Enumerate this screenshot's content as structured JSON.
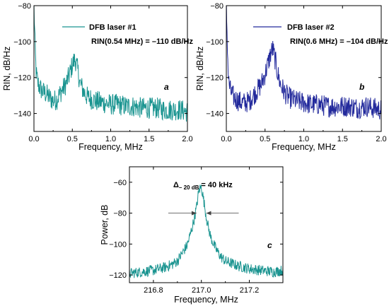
{
  "colors": {
    "teal": "#1a9490",
    "navy": "#232a9c",
    "axis": "#000000",
    "arrow": "#444444"
  },
  "chart_data": [
    {
      "panel": "a",
      "type": "line",
      "xlabel": "Frequency, MHz",
      "ylabel": "RIN, dB/Hz",
      "xlim": [
        0.0,
        2.0
      ],
      "ylim": [
        -150,
        -80
      ],
      "xticks": [
        0.0,
        0.5,
        1.0,
        1.5,
        2.0
      ],
      "xtick_labels": [
        "0.0",
        "0.5",
        "1.0",
        "1.5",
        "2.0"
      ],
      "yticks": [
        -80,
        -100,
        -120,
        -140
      ],
      "ytick_labels": [
        "-80",
        "-100",
        "-120",
        "-140"
      ],
      "legend": "top-right",
      "annotation": "RIN(0.54 MHz) = –110 dB/Hz",
      "panel_label": "a",
      "color": "#1a9490",
      "series": [
        {
          "name": "DFB laser #1",
          "x": [
            0.0,
            0.01,
            0.02,
            0.03,
            0.05,
            0.08,
            0.12,
            0.16,
            0.2,
            0.25,
            0.3,
            0.35,
            0.4,
            0.45,
            0.48,
            0.5,
            0.52,
            0.54,
            0.56,
            0.58,
            0.6,
            0.65,
            0.7,
            0.8,
            0.9,
            1.0,
            1.1,
            1.2,
            1.3,
            1.4,
            1.5,
            1.6,
            1.7,
            1.8,
            1.9,
            2.0
          ],
          "y": [
            -80,
            -95,
            -110,
            -118,
            -123,
            -126,
            -128,
            -129,
            -131,
            -133,
            -132,
            -128,
            -125,
            -120,
            -116,
            -113,
            -111,
            -110,
            -114,
            -118,
            -123,
            -128,
            -131,
            -133,
            -134,
            -135,
            -135,
            -136,
            -136,
            -137,
            -137,
            -137,
            -138,
            -138,
            -138,
            -139
          ],
          "noise_amplitude": 6
        }
      ]
    },
    {
      "panel": "b",
      "type": "line",
      "xlabel": "Frequency, MHz",
      "ylabel": "RIN, dB/Hz",
      "xlim": [
        0.0,
        2.0
      ],
      "ylim": [
        -150,
        -80
      ],
      "xticks": [
        0.0,
        0.5,
        1.0,
        1.5,
        2.0
      ],
      "xtick_labels": [
        "0.0",
        "0.5",
        "1.0",
        "1.5",
        "2.0"
      ],
      "yticks": [
        -80,
        -100,
        -120,
        -140
      ],
      "ytick_labels": [
        "-80",
        "-100",
        "-120",
        "-140"
      ],
      "legend": "top-right",
      "annotation": "RIN(0.6 MHz) = –104 dB/Hz",
      "panel_label": "b",
      "color": "#232a9c",
      "series": [
        {
          "name": "DFB laser #2",
          "x": [
            0.0,
            0.01,
            0.02,
            0.03,
            0.05,
            0.08,
            0.12,
            0.16,
            0.2,
            0.25,
            0.3,
            0.35,
            0.4,
            0.45,
            0.5,
            0.54,
            0.57,
            0.6,
            0.63,
            0.66,
            0.7,
            0.75,
            0.8,
            0.9,
            1.0,
            1.1,
            1.2,
            1.3,
            1.4,
            1.5,
            1.6,
            1.7,
            1.8,
            1.9,
            2.0
          ],
          "y": [
            -80,
            -95,
            -112,
            -122,
            -127,
            -130,
            -132,
            -133,
            -134,
            -134,
            -133,
            -130,
            -127,
            -124,
            -118,
            -112,
            -107,
            -104,
            -110,
            -117,
            -124,
            -128,
            -131,
            -133,
            -134,
            -135,
            -135,
            -136,
            -136,
            -136,
            -136,
            -137,
            -136,
            -137,
            -138
          ],
          "noise_amplitude": 6
        }
      ]
    },
    {
      "panel": "c",
      "type": "line",
      "xlabel": "Frequency, MHz",
      "ylabel": "Power, dB",
      "xlim": [
        216.7,
        217.34
      ],
      "ylim": [
        -125,
        -50
      ],
      "xticks": [
        216.8,
        217.0,
        217.2
      ],
      "xtick_labels": [
        "216.8",
        "217.0",
        "217.2"
      ],
      "yticks": [
        -60,
        -80,
        -100,
        -120
      ],
      "ytick_labels": [
        "-60",
        "-80",
        "-100",
        "-120"
      ],
      "annotation_prefix": "Δ",
      "annotation_sub": "– 20 dB",
      "annotation_suffix": " = 40 kHz",
      "linewidth_marker": {
        "x_left": 216.98,
        "x_right": 217.02,
        "y": -80
      },
      "panel_label": "c",
      "color": "#1a9490",
      "series": [
        {
          "name": "",
          "x": [
            216.7,
            216.75,
            216.8,
            216.85,
            216.88,
            216.9,
            216.92,
            216.94,
            216.95,
            216.96,
            216.97,
            216.98,
            216.99,
            217.0,
            217.01,
            217.02,
            217.03,
            217.04,
            217.06,
            217.08,
            217.1,
            217.15,
            217.2,
            217.25,
            217.3,
            217.34
          ],
          "y": [
            -119,
            -118,
            -117,
            -115,
            -113,
            -111,
            -106,
            -101,
            -96,
            -90,
            -84,
            -76,
            -65,
            -63,
            -72,
            -82,
            -90,
            -96,
            -103,
            -108,
            -111,
            -114,
            -116,
            -117,
            -118,
            -117
          ],
          "noise_amplitude": 3.5
        }
      ]
    }
  ]
}
